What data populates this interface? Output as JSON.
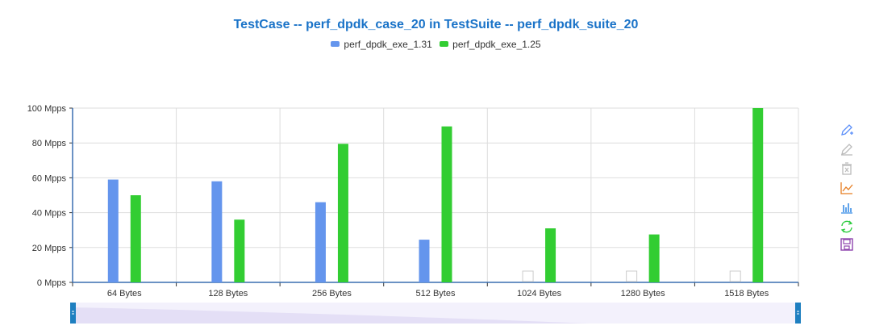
{
  "chart_data": {
    "type": "bar",
    "title": "TestCase -- perf_dpdk_case_20 in TestSuite -- perf_dpdk_suite_20",
    "categories": [
      "64 Bytes",
      "128 Bytes",
      "256 Bytes",
      "512 Bytes",
      "1024 Bytes",
      "1280 Bytes",
      "1518 Bytes"
    ],
    "series": [
      {
        "name": "perf_dpdk_exe_1.31",
        "color": "#6495ed",
        "values": [
          59,
          58,
          46,
          24.5,
          null,
          null,
          null
        ]
      },
      {
        "name": "perf_dpdk_exe_1.25",
        "color": "#32cd32",
        "values": [
          50,
          36,
          79.5,
          89.5,
          31,
          27.5,
          100
        ]
      }
    ],
    "yticks": [
      "0 Mpps",
      "20 Mpps",
      "40 Mpps",
      "60 Mpps",
      "80 Mpps",
      "100 Mpps"
    ],
    "ylim": [
      0,
      100
    ],
    "grid": true,
    "legend_position": "top-center"
  },
  "toolbox": [
    {
      "icon": "pencil-add-icon",
      "color": "#5b8ff9"
    },
    {
      "icon": "pencil-clear-icon",
      "color": "#bbbbbb"
    },
    {
      "icon": "trash-icon",
      "color": "#bbbbbb"
    },
    {
      "icon": "line-chart-icon",
      "color": "#e67e22"
    },
    {
      "icon": "bar-chart-icon",
      "color": "#3a8ee6"
    },
    {
      "icon": "refresh-icon",
      "color": "#2ecc40"
    },
    {
      "icon": "save-icon",
      "color": "#8e44ad"
    }
  ]
}
